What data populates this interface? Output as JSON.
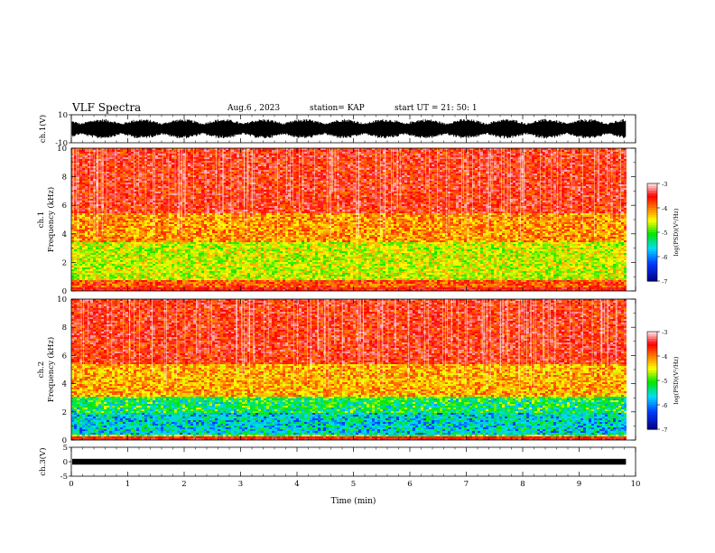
{
  "header": {
    "title": "VLF Spectra",
    "date": "Aug.6 , 2023",
    "station": "station= KAP",
    "start": "start UT = 21: 50: 1"
  },
  "colors": {
    "spectrum_low": "#1a1aff",
    "spectrum_mid": "#00ff00",
    "spectrum_yellow": "#ffff00",
    "spectrum_high": "#ff0000",
    "spectrum_max": "#ffffff"
  },
  "chart_data": [
    {
      "type": "line",
      "name": "ch.1 waveform",
      "ylabel": "ch.1(V)",
      "ylim": [
        -10,
        10
      ],
      "yticks": [
        "10",
        "-10"
      ],
      "xlim": [
        0,
        10
      ],
      "grid": false,
      "description_values": {
        "amplitude_typical_V": [
          -7,
          7
        ]
      }
    },
    {
      "type": "heatmap",
      "name": "ch.1 spectrogram",
      "ylabel": "ch.1",
      "ylabel2": "Frequency (kHz)",
      "ylim": [
        0,
        10
      ],
      "yticks": [
        "0",
        "2",
        "4",
        "6",
        "8",
        "10"
      ],
      "xlim": [
        0,
        9.8
      ],
      "colorbar": {
        "label": "log(PSD)(V²/Hz)",
        "range": [
          -7,
          -3
        ],
        "ticks": [
          "-3",
          "-4",
          "-5",
          "-6",
          "-7"
        ]
      },
      "bands_kHz": [
        {
          "from": 0,
          "to": 0.8,
          "level": -3.8
        },
        {
          "from": 0.8,
          "to": 3.5,
          "level": -4.6
        },
        {
          "from": 3.5,
          "to": 5.5,
          "level": -4.1
        },
        {
          "from": 5.5,
          "to": 10,
          "level": -3.6
        }
      ]
    },
    {
      "type": "heatmap",
      "name": "ch.2 spectrogram",
      "ylabel": "ch.2",
      "ylabel2": "Frequency (kHz)",
      "ylim": [
        0,
        10
      ],
      "yticks": [
        "0",
        "2",
        "4",
        "6",
        "8",
        "10"
      ],
      "xlim": [
        0,
        9.8
      ],
      "colorbar": {
        "label": "log(PSD)(V²/Hz)",
        "range": [
          -7,
          -3
        ],
        "ticks": [
          "-3",
          "-4",
          "-5",
          "-6",
          "-7"
        ]
      },
      "bands_kHz": [
        {
          "from": 0,
          "to": 0.5,
          "level": -4.8
        },
        {
          "from": 0.5,
          "to": 2.0,
          "level": -5.4
        },
        {
          "from": 2.0,
          "to": 3.2,
          "level": -5.0
        },
        {
          "from": 3.2,
          "to": 5.5,
          "level": -4.2
        },
        {
          "from": 5.5,
          "to": 10,
          "level": -3.6
        }
      ]
    },
    {
      "type": "line",
      "name": "ch.3 waveform",
      "ylabel": "ch.3(V)",
      "ylim": [
        -5,
        5
      ],
      "yticks": [
        "5",
        "0",
        "-5"
      ],
      "xlim": [
        0,
        10
      ],
      "xlabel": "Time (min)",
      "xticks": [
        "0",
        "1",
        "2",
        "3",
        "4",
        "5",
        "6",
        "7",
        "8",
        "9",
        "10"
      ],
      "description_values": {
        "amplitude_typical_V": [
          -1,
          1
        ]
      }
    }
  ]
}
